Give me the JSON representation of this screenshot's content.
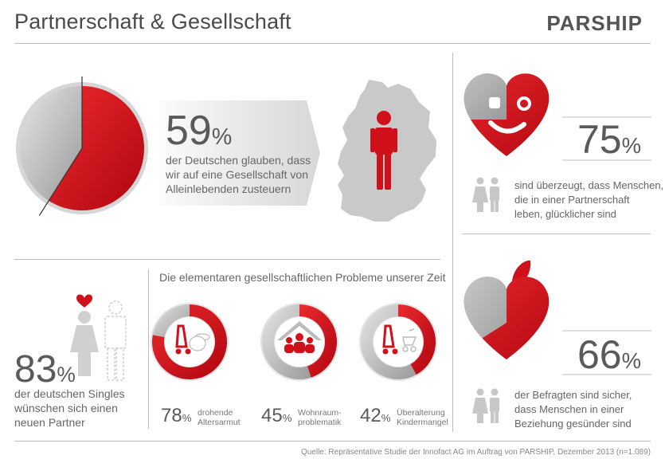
{
  "header": {
    "title": "Partnerschaft & Gesellschaft",
    "logo": "PARSHIP"
  },
  "stat1": {
    "value": "59",
    "unit": "%",
    "text": [
      "der Deutschen glauben, dass",
      "wir auf eine Gesellschaft von",
      "Alleinlebenden zusteuern"
    ]
  },
  "stat2": {
    "value": "75",
    "unit": "%",
    "text": [
      "sind überzeugt, dass Menschen,",
      "die in einer Partnerschaft",
      "leben, glücklicher sind"
    ]
  },
  "stat3": {
    "value": "83",
    "unit": "%",
    "text": [
      "der deutschen Singles",
      "wünschen sich einen",
      "neuen Partner"
    ]
  },
  "stat4": {
    "value": "66",
    "unit": "%",
    "text": [
      "der Befragten sind sicher,",
      "dass Menschen in einer",
      "Beziehung gesünder sind"
    ]
  },
  "problems": {
    "heading": "Die elementaren gesellschaftlichen Probleme unserer Zeit",
    "items": [
      {
        "value": "78",
        "unit": "%",
        "label": [
          "drohende",
          "Altersarmut"
        ]
      },
      {
        "value": "45",
        "unit": "%",
        "label": [
          "Wohnraum-",
          "problematik"
        ]
      },
      {
        "value": "42",
        "unit": "%",
        "label": [
          "Überalterung",
          "Kindermangel"
        ]
      }
    ]
  },
  "source": "Quelle: Repräsentative Studie der Innofact AG im Auftrag von PARSHIP, Dezember 2013 (n=1.089)",
  "chart_data": [
    {
      "type": "pie",
      "values": [
        59,
        41
      ]
    },
    {
      "type": "pie",
      "values": [
        75,
        25
      ]
    },
    {
      "type": "pie",
      "values": [
        66,
        34
      ]
    },
    {
      "type": "pie",
      "values": [
        78,
        22
      ]
    },
    {
      "type": "pie",
      "values": [
        45,
        55
      ]
    },
    {
      "type": "pie",
      "values": [
        42,
        58
      ]
    }
  ],
  "colors": {
    "red": "#d0111b",
    "gray": "#a8a8a8"
  }
}
